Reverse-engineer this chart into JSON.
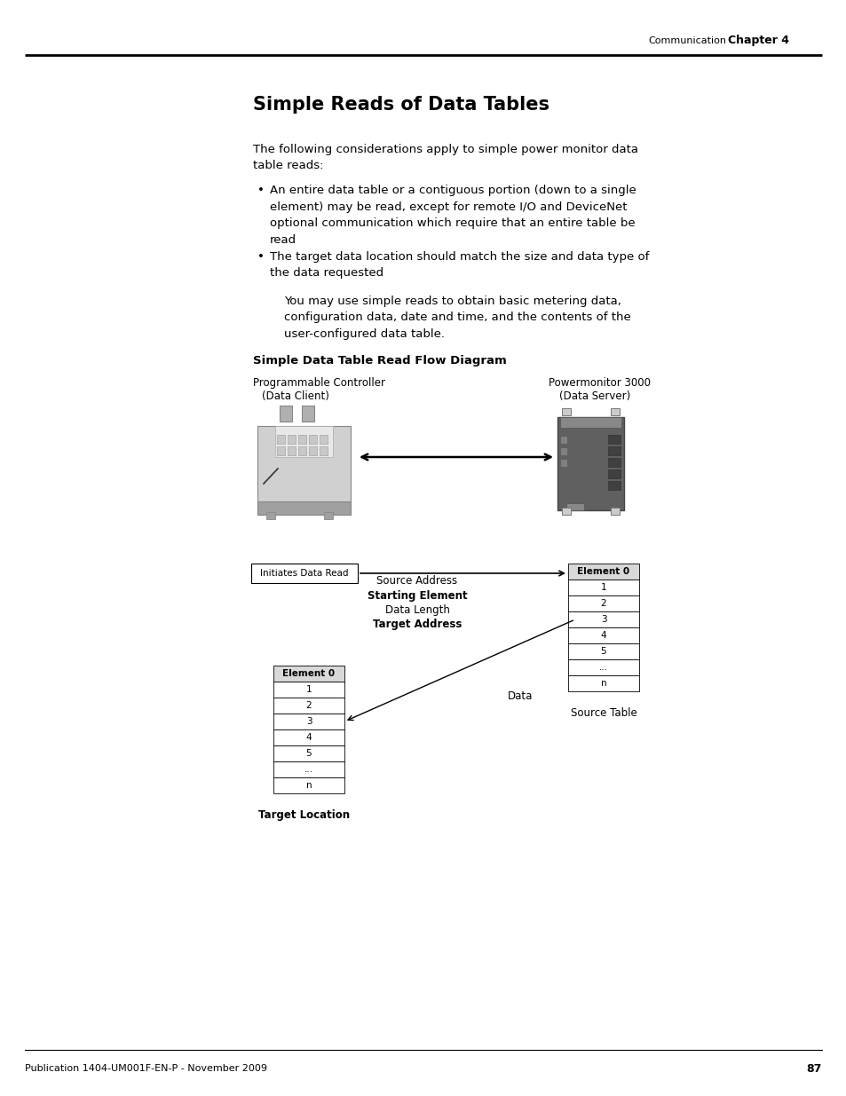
{
  "page_title": "Simple Reads of Data Tables",
  "chapter_label": "Communication",
  "chapter_number": "Chapter 4",
  "page_number": "87",
  "footer_text": "Publication 1404-UM001F-EN-P - November 2009",
  "body_text_1": "The following considerations apply to simple power monitor data\ntable reads:",
  "bullet_1": "An entire data table or a contiguous portion (down to a single\nelement) may be read, except for remote I/O and DeviceNet\noptional communication which require that an entire table be\nread",
  "bullet_2": "The target data location should match the size and data type of\nthe data requested",
  "body_text_2": "You may use simple reads to obtain basic metering data,\nconfiguration data, date and time, and the contents of the\nuser-configured data table.",
  "diagram_title": "Simple Data Table Read Flow Diagram",
  "left_device_label_1": "Programmable Controller",
  "left_device_label_2": "(Data Client)",
  "right_device_label_1": "Powermonitor 3000",
  "right_device_label_2": "(Data Server)",
  "initiates_label": "Initiates Data Read",
  "flow_labels": [
    "Source Address",
    "Starting Element",
    "Data Length",
    "Target Address"
  ],
  "data_label": "Data",
  "source_table_label": "Source Table",
  "target_location_label": "Target Location",
  "source_table_rows": [
    "Element 0",
    "1",
    "2",
    "3",
    "4",
    "5",
    "...",
    "n"
  ],
  "target_table_rows": [
    "Element 0",
    "1",
    "2",
    "3",
    "4",
    "5",
    "...",
    "n"
  ],
  "bg_color": "#ffffff",
  "text_color": "#000000"
}
